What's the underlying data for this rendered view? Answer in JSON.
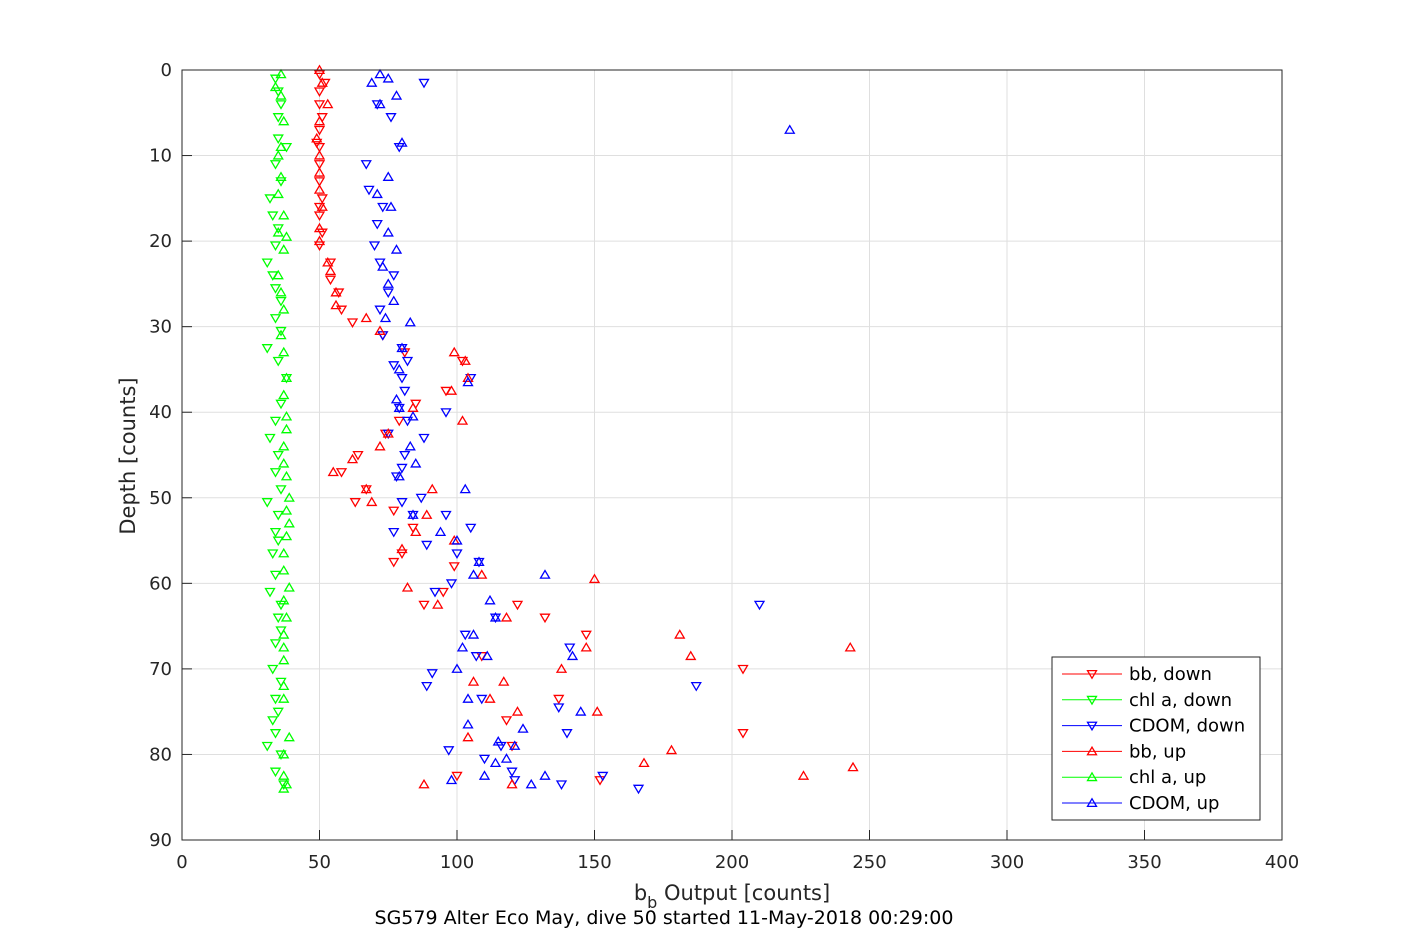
{
  "chart_data": {
    "type": "scatter",
    "xlabel_main": "b",
    "xlabel_sub": "b",
    "xlabel_rest": " Output [counts]",
    "ylabel": "Depth [counts]",
    "caption": "SG579 Alter Eco May, dive 50 started 11-May-2018 00:29:00",
    "xlim": [
      0,
      400
    ],
    "ylim": [
      0,
      90
    ],
    "y_reversed": true,
    "grid": true,
    "x_ticks": [
      "0",
      "50",
      "100",
      "150",
      "200",
      "250",
      "300",
      "350",
      "400"
    ],
    "y_ticks": [
      "0",
      "10",
      "20",
      "30",
      "40",
      "50",
      "60",
      "70",
      "80",
      "90"
    ],
    "legend_position": "bottom-right",
    "series": [
      {
        "name": "bb, down",
        "color": "#ff0000",
        "marker": "triangle-down",
        "points": [
          [
            50,
            0.5
          ],
          [
            52,
            1.5
          ],
          [
            50,
            2.5
          ],
          [
            50,
            4
          ],
          [
            51,
            5.5
          ],
          [
            50,
            7
          ],
          [
            49,
            8.5
          ],
          [
            50,
            9
          ],
          [
            50,
            11
          ],
          [
            50,
            13
          ],
          [
            51,
            15
          ],
          [
            50,
            16
          ],
          [
            50,
            17
          ],
          [
            51,
            19
          ],
          [
            50,
            20.5
          ],
          [
            54,
            22.5
          ],
          [
            54,
            24.5
          ],
          [
            57,
            26
          ],
          [
            58,
            28
          ],
          [
            62,
            29.5
          ],
          [
            73,
            31
          ],
          [
            81,
            33
          ],
          [
            102,
            34
          ],
          [
            96,
            37.5
          ],
          [
            85,
            39
          ],
          [
            79,
            41
          ],
          [
            74,
            42.5
          ],
          [
            64,
            45
          ],
          [
            58,
            47
          ],
          [
            67,
            49
          ],
          [
            63,
            50.5
          ],
          [
            77,
            51.5
          ],
          [
            84,
            53.5
          ],
          [
            80,
            56.5
          ],
          [
            77,
            57.5
          ],
          [
            99,
            58
          ],
          [
            95,
            61
          ],
          [
            88,
            62.5
          ],
          [
            122,
            62.5
          ],
          [
            132,
            64
          ],
          [
            147,
            66
          ],
          [
            109,
            68.5
          ],
          [
            204,
            70
          ],
          [
            137,
            73.5
          ],
          [
            118,
            76
          ],
          [
            204,
            77.5
          ],
          [
            120,
            79
          ],
          [
            100,
            82.5
          ],
          [
            152,
            83
          ]
        ]
      },
      {
        "name": "chl a, down",
        "color": "#00ff00",
        "marker": "triangle-down",
        "points": [
          [
            34,
            1
          ],
          [
            35,
            2.5
          ],
          [
            36,
            4
          ],
          [
            35,
            5.5
          ],
          [
            35,
            8
          ],
          [
            38,
            9
          ],
          [
            34,
            11
          ],
          [
            36,
            13
          ],
          [
            32,
            15
          ],
          [
            33,
            17
          ],
          [
            35,
            18.5
          ],
          [
            34,
            20.5
          ],
          [
            31,
            22.5
          ],
          [
            33,
            24
          ],
          [
            34,
            25.5
          ],
          [
            36,
            27
          ],
          [
            34,
            29
          ],
          [
            36,
            30.5
          ],
          [
            31,
            32.5
          ],
          [
            35,
            34
          ],
          [
            38,
            36
          ],
          [
            36,
            39
          ],
          [
            34,
            41
          ],
          [
            32,
            43
          ],
          [
            35,
            45
          ],
          [
            34,
            47
          ],
          [
            36,
            49
          ],
          [
            31,
            50.5
          ],
          [
            35,
            52
          ],
          [
            34,
            54
          ],
          [
            35,
            55
          ],
          [
            33,
            56.5
          ],
          [
            34,
            59
          ],
          [
            32,
            61
          ],
          [
            36,
            62.5
          ],
          [
            35,
            64
          ],
          [
            36,
            65.5
          ],
          [
            34,
            67
          ],
          [
            33,
            70
          ],
          [
            36,
            71.5
          ],
          [
            34,
            73.5
          ],
          [
            35,
            75
          ],
          [
            33,
            76
          ],
          [
            34,
            77.5
          ],
          [
            31,
            79
          ],
          [
            36,
            80
          ],
          [
            34,
            82
          ],
          [
            37,
            83.5
          ]
        ]
      },
      {
        "name": "CDOM, down",
        "color": "#0000ff",
        "marker": "triangle-down",
        "points": [
          [
            88,
            1.5
          ],
          [
            71,
            4
          ],
          [
            76,
            5.5
          ],
          [
            79,
            9
          ],
          [
            67,
            11
          ],
          [
            68,
            14
          ],
          [
            73,
            16
          ],
          [
            71,
            18
          ],
          [
            70,
            20.5
          ],
          [
            72,
            22.5
          ],
          [
            77,
            24
          ],
          [
            75,
            26
          ],
          [
            72,
            28
          ],
          [
            73,
            31
          ],
          [
            80,
            32.5
          ],
          [
            82,
            34
          ],
          [
            77,
            34.5
          ],
          [
            80,
            36
          ],
          [
            105,
            36
          ],
          [
            81,
            37.5
          ],
          [
            79,
            39.5
          ],
          [
            96,
            40
          ],
          [
            82,
            41
          ],
          [
            75,
            42.5
          ],
          [
            88,
            43
          ],
          [
            81,
            45
          ],
          [
            80,
            46.5
          ],
          [
            78,
            47.5
          ],
          [
            80,
            50.5
          ],
          [
            87,
            50
          ],
          [
            84,
            52
          ],
          [
            96,
            52
          ],
          [
            77,
            54
          ],
          [
            89,
            55.5
          ],
          [
            105,
            53.5
          ],
          [
            100,
            56.5
          ],
          [
            108,
            57.5
          ],
          [
            98,
            60
          ],
          [
            92,
            61
          ],
          [
            114,
            64
          ],
          [
            103,
            66
          ],
          [
            107,
            68.5
          ],
          [
            141,
            67.5
          ],
          [
            91,
            70.5
          ],
          [
            89,
            72
          ],
          [
            109,
            73.5
          ],
          [
            187,
            72
          ],
          [
            137,
            74.5
          ],
          [
            140,
            77.5
          ],
          [
            116,
            79
          ],
          [
            97,
            79.5
          ],
          [
            110,
            80.5
          ],
          [
            120,
            82
          ],
          [
            138,
            83.5
          ],
          [
            166,
            84
          ],
          [
            153,
            82.5
          ],
          [
            210,
            62.5
          ],
          [
            121,
            83
          ]
        ]
      },
      {
        "name": "bb, up",
        "color": "#ff0000",
        "marker": "triangle-up",
        "points": [
          [
            50,
            0
          ],
          [
            51,
            1.5
          ],
          [
            53,
            4
          ],
          [
            50,
            6
          ],
          [
            49,
            8
          ],
          [
            50,
            10
          ],
          [
            50,
            12
          ],
          [
            50,
            14
          ],
          [
            51,
            16
          ],
          [
            50,
            18.5
          ],
          [
            50,
            20
          ],
          [
            53,
            22.5
          ],
          [
            54,
            23.5
          ],
          [
            56,
            26
          ],
          [
            56,
            27.5
          ],
          [
            67,
            29
          ],
          [
            72,
            30.5
          ],
          [
            99,
            33
          ],
          [
            103,
            34
          ],
          [
            104,
            36
          ],
          [
            98,
            37.5
          ],
          [
            84,
            39.5
          ],
          [
            102,
            41
          ],
          [
            75,
            42.5
          ],
          [
            72,
            44
          ],
          [
            62,
            45.5
          ],
          [
            55,
            47
          ],
          [
            67,
            49
          ],
          [
            69,
            50.5
          ],
          [
            91,
            49
          ],
          [
            89,
            52
          ],
          [
            85,
            54
          ],
          [
            80,
            56
          ],
          [
            99,
            55
          ],
          [
            109,
            59
          ],
          [
            150,
            59.5
          ],
          [
            82,
            60.5
          ],
          [
            118,
            64
          ],
          [
            93,
            62.5
          ],
          [
            181,
            66
          ],
          [
            243,
            67.5
          ],
          [
            147,
            67.5
          ],
          [
            185,
            68.5
          ],
          [
            138,
            70
          ],
          [
            106,
            71.5
          ],
          [
            117,
            71.5
          ],
          [
            112,
            73.5
          ],
          [
            151,
            75
          ],
          [
            122,
            75
          ],
          [
            104,
            78
          ],
          [
            178,
            79.5
          ],
          [
            168,
            81
          ],
          [
            226,
            82.5
          ],
          [
            244,
            81.5
          ],
          [
            88,
            83.5
          ],
          [
            120,
            83.5
          ]
        ]
      },
      {
        "name": "chl a, up",
        "color": "#00ff00",
        "marker": "triangle-up",
        "points": [
          [
            36,
            0.5
          ],
          [
            34,
            2
          ],
          [
            36,
            3
          ],
          [
            37,
            6
          ],
          [
            36,
            9
          ],
          [
            35,
            10
          ],
          [
            36,
            12.5
          ],
          [
            35,
            14.5
          ],
          [
            37,
            17
          ],
          [
            35,
            19
          ],
          [
            38,
            19.5
          ],
          [
            37,
            21
          ],
          [
            35,
            24
          ],
          [
            36,
            26
          ],
          [
            37,
            28
          ],
          [
            36,
            31
          ],
          [
            37,
            33
          ],
          [
            38,
            36
          ],
          [
            37,
            38
          ],
          [
            38,
            40.5
          ],
          [
            38,
            42
          ],
          [
            37,
            44
          ],
          [
            37,
            46
          ],
          [
            38,
            47.5
          ],
          [
            39,
            50
          ],
          [
            38,
            51.5
          ],
          [
            39,
            53
          ],
          [
            38,
            54.5
          ],
          [
            37,
            56.5
          ],
          [
            37,
            58.5
          ],
          [
            39,
            60.5
          ],
          [
            37,
            62
          ],
          [
            38,
            64
          ],
          [
            37,
            66
          ],
          [
            37,
            67.5
          ],
          [
            37,
            69
          ],
          [
            37,
            72
          ],
          [
            37,
            73.5
          ],
          [
            39,
            78
          ],
          [
            37,
            80
          ],
          [
            37,
            82.5
          ],
          [
            38,
            83.5
          ],
          [
            37,
            84
          ]
        ]
      },
      {
        "name": "CDOM, up",
        "color": "#0000ff",
        "marker": "triangle-up",
        "points": [
          [
            72,
            0.5
          ],
          [
            69,
            1.5
          ],
          [
            75,
            1
          ],
          [
            78,
            3
          ],
          [
            72,
            4
          ],
          [
            80,
            8.5
          ],
          [
            221,
            7
          ],
          [
            75,
            12.5
          ],
          [
            71,
            14.5
          ],
          [
            76,
            16
          ],
          [
            75,
            19
          ],
          [
            78,
            21
          ],
          [
            73,
            23
          ],
          [
            75,
            25
          ],
          [
            77,
            27
          ],
          [
            74,
            29
          ],
          [
            83,
            29.5
          ],
          [
            80,
            32.5
          ],
          [
            79,
            35
          ],
          [
            104,
            36.5
          ],
          [
            78,
            38.5
          ],
          [
            79,
            39.5
          ],
          [
            84,
            40.5
          ],
          [
            83,
            44
          ],
          [
            85,
            46
          ],
          [
            79,
            47.5
          ],
          [
            103,
            49
          ],
          [
            84,
            52
          ],
          [
            94,
            54
          ],
          [
            100,
            55
          ],
          [
            108,
            57.5
          ],
          [
            106,
            59
          ],
          [
            132,
            59
          ],
          [
            112,
            62
          ],
          [
            114,
            64
          ],
          [
            106,
            66
          ],
          [
            111,
            68.5
          ],
          [
            102,
            67.5
          ],
          [
            142,
            68.5
          ],
          [
            100,
            70
          ],
          [
            104,
            73.5
          ],
          [
            145,
            75
          ],
          [
            124,
            77
          ],
          [
            104,
            76.5
          ],
          [
            115,
            78.5
          ],
          [
            121,
            79
          ],
          [
            118,
            80.5
          ],
          [
            132,
            82.5
          ],
          [
            110,
            82.5
          ],
          [
            98,
            83
          ],
          [
            114,
            81
          ],
          [
            127,
            83.5
          ]
        ]
      }
    ]
  }
}
